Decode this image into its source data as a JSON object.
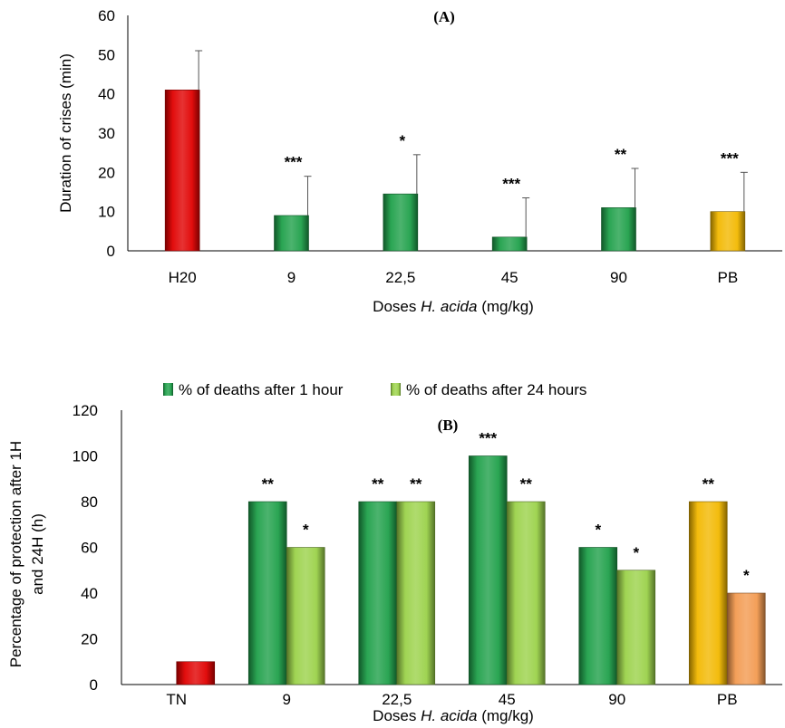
{
  "colors": {
    "red": "#e00000",
    "green": "#1fa04a",
    "light_green": "#9bd24a",
    "yellow": "#f2b800",
    "orange": "#f29a50",
    "axis": "#000000",
    "errorbar": "#555555"
  },
  "chart_data": [
    {
      "type": "bar",
      "title": "(A)",
      "ylabel": "Duration of crises (min)",
      "xlabel_prefix": "Doses ",
      "xlabel_italic": "H. acida",
      "xlabel_suffix": " (mg/kg)",
      "ylim": [
        0,
        60
      ],
      "yticks": [
        0,
        10,
        20,
        30,
        40,
        50,
        60
      ],
      "grid": false,
      "legend": "none",
      "categories": [
        "H20",
        "9",
        "22,5",
        "45",
        "90",
        "PB"
      ],
      "series": [
        {
          "values": [
            41,
            9,
            14.5,
            3.5,
            11,
            10
          ],
          "errors": [
            10,
            10,
            10,
            10,
            10,
            10
          ],
          "colors": [
            "red",
            "green",
            "green",
            "green",
            "green",
            "yellow"
          ],
          "significance": [
            "",
            "***",
            "*",
            "***",
            "**",
            "***"
          ]
        }
      ]
    },
    {
      "type": "bar",
      "title": "(B)",
      "ylabel_line1": "Percentage of protection  after  1H",
      "ylabel_line2": "and 24H (h)",
      "xlabel_prefix": "Doses ",
      "xlabel_italic": "H. acida",
      "xlabel_suffix": " (mg/kg)",
      "ylim": [
        0,
        120
      ],
      "yticks": [
        0,
        20,
        40,
        60,
        80,
        100,
        120
      ],
      "grid": false,
      "legend": "top",
      "categories": [
        "TN",
        "9",
        "22,5",
        "45",
        "90",
        "PB"
      ],
      "series": [
        {
          "name": "% of deaths after 1 hour",
          "values": [
            0,
            80,
            80,
            100,
            60,
            80
          ],
          "colors": [
            "green",
            "green",
            "green",
            "green",
            "green",
            "yellow"
          ],
          "significance": [
            "",
            "**",
            "**",
            "***",
            "*",
            "**"
          ]
        },
        {
          "name": "% of deaths after 24 hours",
          "values": [
            10,
            60,
            80,
            80,
            50,
            40
          ],
          "colors": [
            "red",
            "light_green",
            "light_green",
            "light_green",
            "light_green",
            "orange"
          ],
          "significance": [
            "",
            "*",
            "**",
            "**",
            "*",
            "*"
          ]
        }
      ]
    }
  ]
}
